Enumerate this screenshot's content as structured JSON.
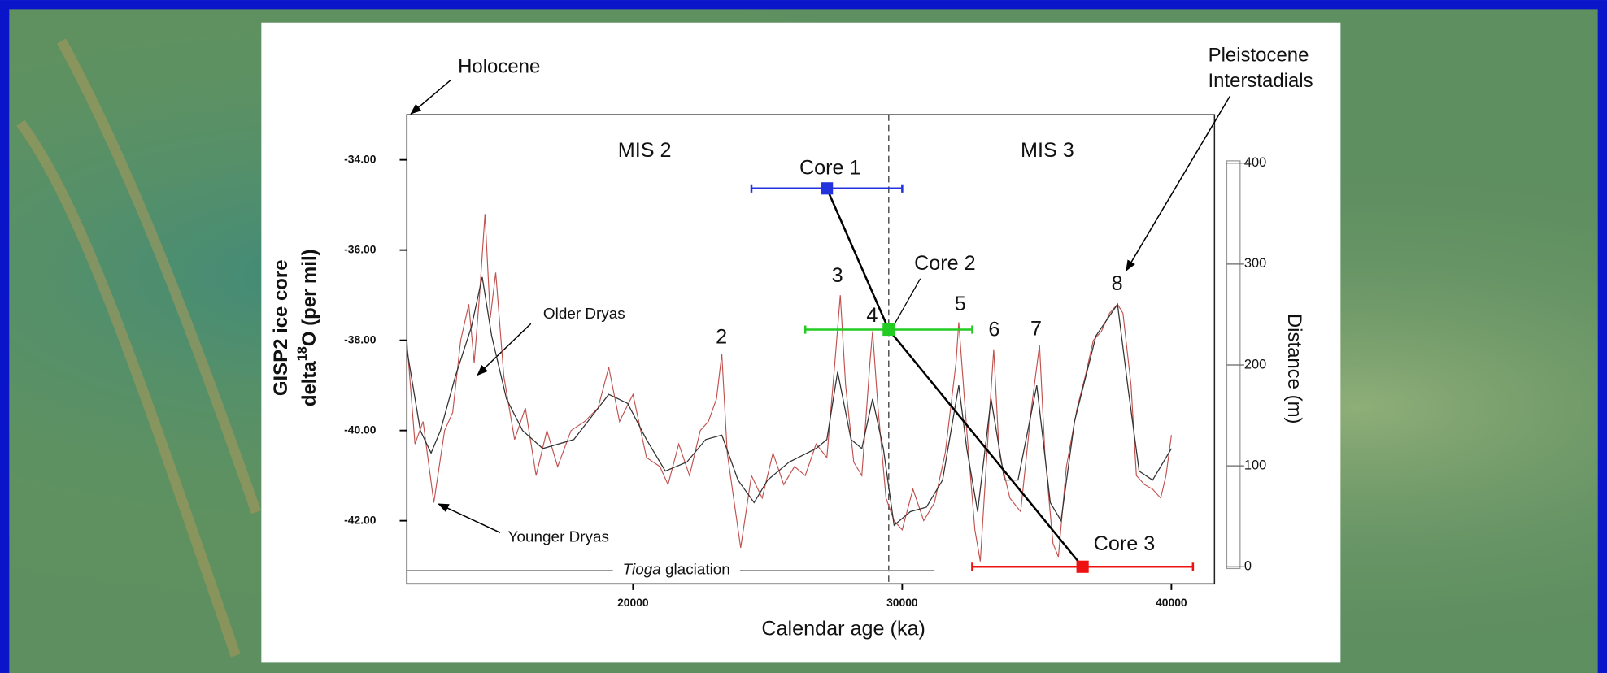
{
  "chart_data": {
    "type": "line",
    "xlabel": "Calendar age (ka)",
    "ylabel": {
      "line1": "GISP2 ice core",
      "pre": "delta",
      "sup": "18",
      "post": "O (per mil)"
    },
    "y2label": "Distance (m)",
    "xlim": [
      11600,
      41600
    ],
    "xticks": [
      20000,
      30000,
      40000
    ],
    "ylim": [
      -43.4,
      -33
    ],
    "yticks": [
      {
        "value": -34,
        "label": "-34.00"
      },
      {
        "value": -36,
        "label": "-36.00"
      },
      {
        "value": -38,
        "label": "-38.00"
      },
      {
        "value": -40,
        "label": "-40.00"
      },
      {
        "value": -42,
        "label": "-42.00"
      }
    ],
    "y2lim": [
      -17,
      448
    ],
    "y2ticks": [
      0,
      100,
      200,
      300,
      400
    ],
    "series": [
      {
        "color": "#c0504d",
        "x": [
          11600,
          11900,
          12200,
          12600,
          13000,
          13300,
          13600,
          13900,
          14100,
          14300,
          14500,
          14700,
          14900,
          15200,
          15600,
          16000,
          16400,
          16800,
          17200,
          17700,
          18200,
          18700,
          19100,
          19500,
          20000,
          20500,
          21000,
          21300,
          21700,
          22100,
          22500,
          22800,
          23100,
          23300,
          23500,
          24000,
          24400,
          24800,
          25200,
          25600,
          26000,
          26400,
          26800,
          27200,
          27500,
          27700,
          27900,
          28200,
          28500,
          28800,
          28900,
          29100,
          29400,
          29700,
          30000,
          30400,
          30800,
          31200,
          31600,
          32000,
          32100,
          32400,
          32700,
          32900,
          33200,
          33400,
          33600,
          34000,
          34400,
          34800,
          35100,
          35300,
          35600,
          35800,
          36100,
          36500,
          36800,
          37100,
          37400,
          37700,
          38000,
          38200,
          38500,
          38700,
          39000,
          39300,
          39600,
          39800,
          40000
        ],
        "values": [
          -38.0,
          -40.3,
          -39.8,
          -41.6,
          -40.0,
          -39.6,
          -38.0,
          -37.2,
          -38.5,
          -37.0,
          -35.2,
          -37.5,
          -36.5,
          -38.8,
          -40.2,
          -39.5,
          -41.0,
          -40.0,
          -40.8,
          -40.0,
          -39.8,
          -39.5,
          -38.6,
          -39.8,
          -39.2,
          -40.6,
          -40.8,
          -41.2,
          -40.3,
          -41.0,
          -40.0,
          -39.8,
          -39.3,
          -38.3,
          -40.5,
          -42.6,
          -41.0,
          -41.5,
          -40.5,
          -41.2,
          -40.8,
          -41.0,
          -40.3,
          -40.6,
          -38.5,
          -37.0,
          -39.0,
          -40.7,
          -41.0,
          -38.5,
          -37.8,
          -39.5,
          -41.5,
          -42.0,
          -42.2,
          -41.3,
          -42.0,
          -41.6,
          -40.5,
          -38.5,
          -37.6,
          -40.0,
          -42.2,
          -42.9,
          -40.0,
          -38.2,
          -40.5,
          -41.5,
          -41.8,
          -39.5,
          -38.1,
          -40.5,
          -42.5,
          -42.8,
          -40.8,
          -39.5,
          -38.8,
          -38.0,
          -37.8,
          -37.4,
          -37.2,
          -37.4,
          -39.0,
          -41.0,
          -41.2,
          -41.3,
          -41.5,
          -41.0,
          -40.1
        ]
      },
      {
        "color": "#333333",
        "x": [
          11600,
          12100,
          12500,
          12850,
          13400,
          14000,
          14400,
          14750,
          15300,
          15900,
          16650,
          17800,
          19100,
          19800,
          20500,
          21200,
          22000,
          22700,
          23300,
          23900,
          24500,
          25000,
          25800,
          26800,
          27200,
          27600,
          28100,
          28500,
          28900,
          29300,
          29700,
          30300,
          30900,
          31500,
          32100,
          32400,
          32800,
          33300,
          33800,
          34300,
          35000,
          35500,
          35900,
          36400,
          37200,
          38000,
          38400,
          38800,
          39300,
          40000
        ],
        "values": [
          -38.2,
          -40.0,
          -40.5,
          -40.0,
          -38.8,
          -37.7,
          -36.6,
          -37.9,
          -39.3,
          -40.0,
          -40.4,
          -40.2,
          -39.2,
          -39.4,
          -40.2,
          -40.9,
          -40.7,
          -40.2,
          -40.1,
          -41.1,
          -41.6,
          -41.1,
          -40.7,
          -40.4,
          -40.2,
          -38.7,
          -40.2,
          -40.4,
          -39.3,
          -40.4,
          -42.1,
          -41.8,
          -41.7,
          -41.1,
          -39.0,
          -40.4,
          -41.8,
          -39.3,
          -41.1,
          -41.1,
          -39.0,
          -41.6,
          -42.0,
          -39.8,
          -37.9,
          -37.2,
          -39.1,
          -40.9,
          -41.1,
          -40.4
        ]
      }
    ],
    "cores": [
      {
        "name": "Core 1",
        "color": "#2233dd",
        "x": 27200,
        "xerr": 2800,
        "distance": 375
      },
      {
        "name": "Core 2",
        "color": "#22cc22",
        "x": 29500,
        "xerr": 3100,
        "distance": 235
      },
      {
        "name": "Core 3",
        "color": "#ee1111",
        "x": 36700,
        "xerr": 4100,
        "distance": 0
      }
    ],
    "mis_boundary": 29500,
    "mis_labels": [
      "MIS 2",
      "MIS 3"
    ],
    "peak_labels": [
      "2",
      "3",
      "4",
      "5",
      "6",
      "7",
      "8"
    ],
    "tioga": {
      "range": [
        11600,
        31200
      ],
      "level": -43.1,
      "italic": "Tioga",
      "rest": " glaciation"
    },
    "annotations": {
      "holocene": "Holocene",
      "older_dryas": "Older Dryas",
      "younger_dryas": "Younger Dryas",
      "pleistocene": [
        "Pleistocene",
        "Interstadials"
      ]
    }
  }
}
